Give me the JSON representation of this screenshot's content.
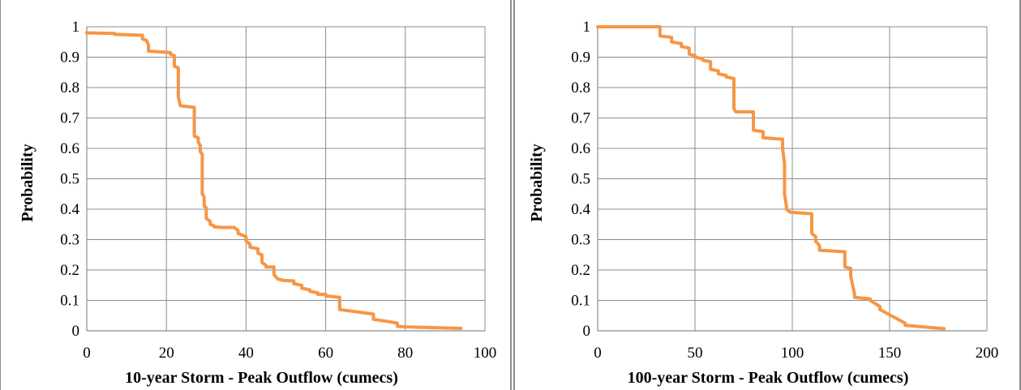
{
  "chart_data": [
    {
      "type": "line",
      "xlabel": "10-year Storm - Peak Outflow (cumecs)",
      "ylabel": "Probability",
      "xlim": [
        0,
        100
      ],
      "ylim": [
        0,
        1
      ],
      "xticks": [
        "0",
        "20",
        "40",
        "60",
        "80",
        "100"
      ],
      "yticks": [
        "0",
        "0.1",
        "0.2",
        "0.3",
        "0.4",
        "0.5",
        "0.6",
        "0.7",
        "0.8",
        "0.9",
        "1"
      ],
      "grid": true,
      "legend": "none",
      "line_color": "#f79646",
      "series": [
        {
          "x": [
            0,
            7,
            7,
            14,
            14,
            15,
            15.5,
            15.5,
            21,
            21,
            22,
            22,
            23,
            23,
            23.5,
            23.5,
            27,
            27,
            28,
            28,
            28.5,
            28.5,
            29,
            29,
            29.5,
            29.5,
            30,
            30,
            31,
            31,
            32,
            32,
            34,
            37,
            38,
            38,
            40,
            40,
            41,
            41,
            43,
            43,
            44,
            44,
            45,
            45,
            47,
            47,
            48,
            49,
            49,
            52,
            52,
            54,
            54,
            56,
            56,
            58,
            58,
            60,
            60,
            63.5,
            63.5,
            72,
            72,
            76,
            78,
            78,
            80,
            94
          ],
          "y": [
            0.98,
            0.978,
            0.975,
            0.972,
            0.96,
            0.955,
            0.94,
            0.92,
            0.915,
            0.91,
            0.905,
            0.87,
            0.865,
            0.77,
            0.74,
            0.74,
            0.735,
            0.64,
            0.635,
            0.62,
            0.61,
            0.59,
            0.58,
            0.45,
            0.44,
            0.41,
            0.405,
            0.37,
            0.36,
            0.35,
            0.345,
            0.342,
            0.34,
            0.34,
            0.33,
            0.32,
            0.31,
            0.295,
            0.285,
            0.275,
            0.27,
            0.255,
            0.25,
            0.225,
            0.215,
            0.21,
            0.21,
            0.185,
            0.17,
            0.168,
            0.166,
            0.164,
            0.155,
            0.15,
            0.14,
            0.135,
            0.13,
            0.125,
            0.12,
            0.12,
            0.115,
            0.11,
            0.07,
            0.055,
            0.038,
            0.03,
            0.025,
            0.015,
            0.013,
            0.008
          ]
        }
      ]
    },
    {
      "type": "line",
      "xlabel": "100-year Storm - Peak Outflow (cumecs)",
      "ylabel": "Probability",
      "xlim": [
        0,
        200
      ],
      "ylim": [
        0,
        1
      ],
      "xticks": [
        "0",
        "50",
        "100",
        "150",
        "200"
      ],
      "yticks": [
        "0",
        "0.1",
        "0.2",
        "0.3",
        "0.4",
        "0.5",
        "0.6",
        "0.7",
        "0.8",
        "0.9",
        "1"
      ],
      "grid": true,
      "legend": "none",
      "line_color": "#f79646",
      "series": [
        {
          "x": [
            0,
            32,
            32,
            38,
            38,
            43,
            43,
            47,
            47,
            50,
            50,
            54,
            54,
            58,
            58,
            62,
            62,
            66,
            66,
            70,
            70,
            71,
            71,
            80,
            80,
            85,
            85,
            95,
            95,
            96,
            96,
            97,
            97,
            99,
            99,
            110,
            110,
            112,
            112,
            114,
            114,
            127,
            127,
            130,
            130,
            132,
            132,
            140,
            140,
            145,
            145,
            158,
            158,
            178
          ],
          "y": [
            1,
            1,
            0.97,
            0.965,
            0.95,
            0.945,
            0.935,
            0.93,
            0.91,
            0.905,
            0.9,
            0.895,
            0.89,
            0.885,
            0.86,
            0.855,
            0.845,
            0.84,
            0.835,
            0.83,
            0.73,
            0.72,
            0.72,
            0.72,
            0.66,
            0.655,
            0.635,
            0.63,
            0.6,
            0.55,
            0.45,
            0.41,
            0.4,
            0.39,
            0.39,
            0.385,
            0.32,
            0.31,
            0.295,
            0.28,
            0.265,
            0.26,
            0.21,
            0.205,
            0.18,
            0.12,
            0.11,
            0.105,
            0.1,
            0.08,
            0.07,
            0.025,
            0.018,
            0.007
          ]
        }
      ]
    }
  ]
}
